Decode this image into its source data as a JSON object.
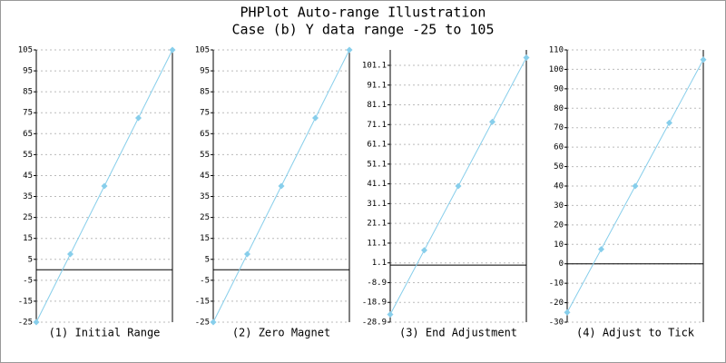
{
  "title": [
    "PHPlot Auto-range Illustration",
    "Case (b) Y data range -25 to 105"
  ],
  "chart_data": [
    {
      "type": "line",
      "title": "(1) Initial Range",
      "categories": [
        null,
        null,
        null,
        null,
        null
      ],
      "values": [
        -25,
        7.5,
        40,
        72.5,
        105
      ],
      "color": "#87ceeb",
      "ylim": [
        -25,
        105
      ],
      "yticks": [
        -25,
        -15,
        -5,
        5,
        15,
        25,
        35,
        45,
        55,
        65,
        75,
        85,
        95,
        105
      ],
      "grid": true
    },
    {
      "type": "line",
      "title": "(2) Zero Magnet",
      "categories": [
        null,
        null,
        null,
        null,
        null
      ],
      "values": [
        -25,
        7.5,
        40,
        72.5,
        105
      ],
      "color": "#87ceeb",
      "ylim": [
        -25,
        105
      ],
      "yticks": [
        -25,
        -15,
        -5,
        5,
        15,
        25,
        35,
        45,
        55,
        65,
        75,
        85,
        95,
        105
      ],
      "grid": true
    },
    {
      "type": "line",
      "title": "(3) End Adjustment",
      "categories": [
        null,
        null,
        null,
        null,
        null
      ],
      "values": [
        -25,
        7.5,
        40,
        72.5,
        105
      ],
      "color": "#87ceeb",
      "ylim": [
        -28.9,
        108.9
      ],
      "yticks": [
        -28.9,
        -18.9,
        -8.9,
        1.1,
        11.1,
        21.1,
        31.1,
        41.1,
        51.1,
        61.1,
        71.1,
        81.1,
        91.1,
        101.1
      ],
      "grid": true
    },
    {
      "type": "line",
      "title": "(4) Adjust to Tick",
      "categories": [
        null,
        null,
        null,
        null,
        null
      ],
      "values": [
        -25,
        7.5,
        40,
        72.5,
        105
      ],
      "color": "#87ceeb",
      "ylim": [
        -30,
        110
      ],
      "yticks": [
        -30,
        -20,
        -10,
        0,
        10,
        20,
        30,
        40,
        50,
        60,
        70,
        80,
        90,
        100,
        110
      ],
      "grid": true
    }
  ]
}
